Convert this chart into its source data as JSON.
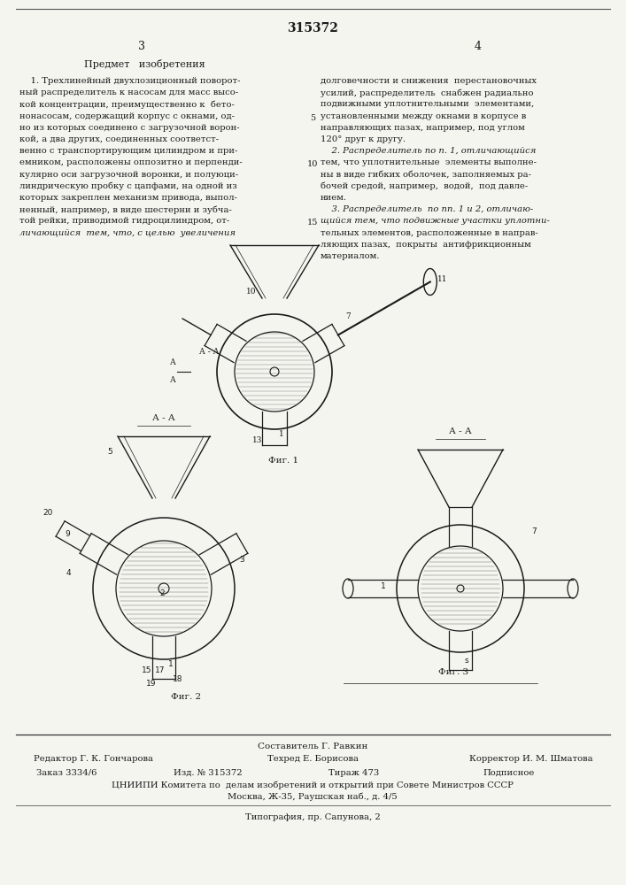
{
  "patent_number": "315372",
  "page_left": "3",
  "page_right": "4",
  "heading": "Предмет   изобретения",
  "left_col_lines": [
    "    1. Трехлинейный двухлозиционный поворот-",
    "ный распределитель к насосам для масс высо-",
    "кой концентрации, преимущественно к  бето-",
    "нонасосам, содержащий корпус с окнами, од-",
    "но из которых соединено с загрузочной ворон-",
    "кой, а два других, соединенных соответст-",
    "венно с транспортирующим цилиндром и при-",
    "емником, расположены оппозитно и перпенди-",
    "кулярно оси загрузочной воронки, и полуюци-",
    "линдрическую пробку с цапфами, на одной из",
    "которых закреплен механизм привода, выпол-",
    "ненный, например, в виде шестерни и зубча-",
    "той рейки, приводимой гидроцилиндром, от-",
    "личающийся  тем, что, с целью  увеличения"
  ],
  "right_col_lines": [
    "долговечности и снижения  перестановочных",
    "усилий, распределитель  снабжен радиально",
    "подвижными уплотнительными  элементами,",
    "установленными между окнами в корпусе в",
    "направляющих пазах, например, под углом",
    "120° друг к другу.",
    "    2. Распределитель по п. 1, отличающийся",
    "тем, что уплотнительные  элементы выполне-",
    "ны в виде гибких оболочек, заполняемых ра-",
    "бочей средой, например,  водой,  под давле-",
    "нием.",
    "    3. Распределитель  по пп. 1 и 2, отличаю-",
    "щийся тем, что подвижные участки уплотни-",
    "тельных элементов, расположенные в направ-",
    "ляющих пазах,  покрыты  антифрикционным",
    "материалом."
  ],
  "line_num_5_row": 3,
  "line_num_10_row": 7,
  "line_num_15_row": 12,
  "footer_line1": "Составитель Г. Равкин",
  "footer_editor": "Редактор Г. К. Гончарова",
  "footer_tech": "Техред Е. Борисова",
  "footer_corr": "Корректор И. М. Шматова",
  "footer_order": "Заказ 3334/6",
  "footer_izd": "Изд. № 315372",
  "footer_tirazh": "Тираж 473",
  "footer_podp": "Подписное",
  "footer_org": "ЦНИИПИ Комитета по  делам изобретений и открытий при Совете Министров СССР",
  "footer_addr": "Москва, Ж-35, Раушская наб., д. 4/5",
  "footer_print": "Типография, пр. Сапунова, 2",
  "bg_color": "#f5f5f0",
  "text_color": "#1a1a1a",
  "line_color": "#555555"
}
